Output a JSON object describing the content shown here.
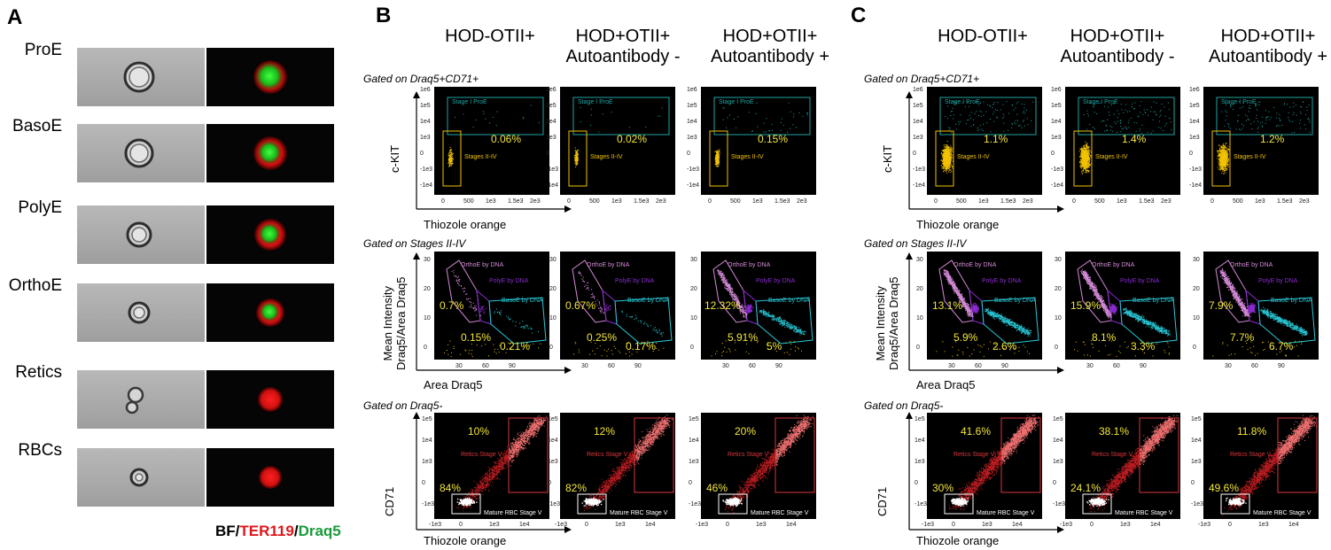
{
  "panels": {
    "A": "A",
    "B": "B",
    "C": "C"
  },
  "panel_a": {
    "rows": [
      "ProE",
      "BasoE",
      "PolyE",
      "OrthoE",
      "Retics",
      "RBCs"
    ],
    "legend": {
      "bf": "BF/",
      "ter": "TER119",
      "slash": "/",
      "draq": "Draq5"
    },
    "colors": {
      "ter": "#e0151b",
      "draq": "#1a9a3a"
    }
  },
  "columns": [
    "HOD-OTII+",
    "HOD+OTII+\nAutoantibody -",
    "HOD+OTII+\nAutoantibody +"
  ],
  "gates": {
    "row1": "Gated on Draq5+CD71+",
    "row2": "Gated on Stages II-IV",
    "row3": "Gated on Draq5-"
  },
  "axes": {
    "row1": {
      "y": "c-KIT",
      "x": "Thiozole orange",
      "yticks": [
        "1e6",
        "1e5",
        "1e4",
        "1e3",
        "0",
        "-1e3",
        "-1e4"
      ],
      "xticks": [
        "0",
        "500",
        "1e3",
        "1.5e3",
        "2e3"
      ]
    },
    "row2": {
      "y": "Mean Intensity\nDraq5/Area Draq5",
      "x": "Area Draq5",
      "yticks": [
        "30",
        "20",
        "10",
        "0"
      ],
      "xticks": [
        "30",
        "60",
        "90"
      ]
    },
    "row3": {
      "y": "CD71",
      "x": "Thiozole orange",
      "yticks": [
        "1e5",
        "1e4",
        "1e3",
        "0",
        "-1e3"
      ],
      "xticks": [
        "-1e3",
        "0",
        "1e3",
        "1e4"
      ]
    }
  },
  "gate_labels": {
    "stage1": "Stage I ProE",
    "stages24": "Stages II-IV",
    "ortho": "OrthoE by DNA",
    "poly": "PolyE by DNA",
    "baso": "BasoE by DNA",
    "retics": "Retics Stage V",
    "mature": "Mature RBC Stage V"
  },
  "gate_colors": {
    "row1": "#f2c200",
    "teal": "#1fa5a5",
    "ortho": "#d48ad8",
    "poly": "#8a2bd0",
    "baso": "#27c8d6",
    "retics": "#d9363b"
  },
  "panel_b": {
    "row1_pct": [
      "0.06%",
      "0.02%",
      "0.15%"
    ],
    "row2_pct": [
      [
        "0.7%",
        "0.15%",
        "0.21%"
      ],
      [
        "0.67%",
        "0.25%",
        "0.17%"
      ],
      [
        "12.32%",
        "5.91%",
        "5%"
      ]
    ],
    "row3_pct": [
      [
        "10%",
        "84%"
      ],
      [
        "12%",
        "82%"
      ],
      [
        "20%",
        "46%"
      ]
    ]
  },
  "panel_c": {
    "row1_pct": [
      "1.1%",
      "1.4%",
      "1.2%"
    ],
    "row2_pct": [
      [
        "13.1%",
        "5.9%",
        "2.6%"
      ],
      [
        "15.9%",
        "8.1%",
        "3.3%"
      ],
      [
        "7.9%",
        "7.7%",
        "6.7%"
      ]
    ],
    "row3_pct": [
      [
        "41.6%",
        "30%"
      ],
      [
        "38.1%",
        "24.1%"
      ],
      [
        "11.8%",
        "49.6%"
      ]
    ]
  }
}
